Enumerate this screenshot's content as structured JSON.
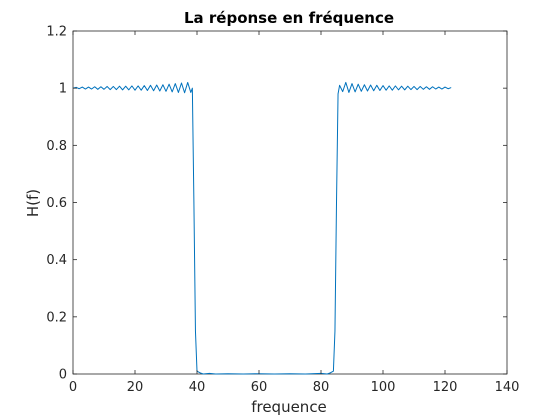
{
  "chart_data": {
    "type": "line",
    "title": "La réponse en fréquence",
    "xlabel": "frequence",
    "ylabel": "H(f)",
    "xlim": [
      0,
      140
    ],
    "ylim": [
      0,
      1.2
    ],
    "xticks": [
      0,
      20,
      40,
      60,
      80,
      100,
      120,
      140
    ],
    "xtick_labels": [
      "0",
      "20",
      "40",
      "60",
      "80",
      "100",
      "120",
      "140"
    ],
    "yticks": [
      0,
      0.2,
      0.4,
      0.6,
      0.8,
      1,
      1.2
    ],
    "ytick_labels": [
      "0",
      "0.2",
      "0.4",
      "0.6",
      "0.8",
      "1",
      "1.2"
    ],
    "grid": false,
    "series": [
      {
        "color": "#0072bd",
        "x": [
          0,
          1,
          2,
          3,
          4,
          5,
          6,
          7,
          8,
          9,
          10,
          11,
          12,
          13,
          14,
          15,
          16,
          17,
          18,
          19,
          20,
          21,
          22,
          23,
          24,
          25,
          26,
          27,
          28,
          29,
          30,
          31,
          32,
          33,
          34,
          35,
          36,
          37,
          38,
          38.5,
          39,
          39.5,
          40,
          41,
          42,
          44,
          46,
          50,
          55,
          60,
          65,
          70,
          75,
          80,
          82,
          83,
          84,
          84.5,
          85,
          85.5,
          86,
          87,
          88,
          89,
          90,
          91,
          92,
          93,
          94,
          95,
          96,
          97,
          98,
          99,
          100,
          101,
          102,
          103,
          104,
          105,
          106,
          107,
          108,
          109,
          110,
          111,
          112,
          113,
          114,
          115,
          116,
          117,
          118,
          119,
          120,
          121,
          122
        ],
        "y": [
          1.0,
          1.003,
          0.998,
          1.004,
          0.997,
          1.004,
          0.997,
          1.005,
          0.996,
          1.005,
          0.996,
          1.006,
          0.995,
          1.006,
          0.995,
          1.007,
          0.994,
          1.007,
          0.994,
          1.008,
          0.993,
          1.008,
          0.993,
          1.009,
          0.992,
          1.01,
          0.991,
          1.011,
          0.99,
          1.012,
          0.989,
          1.014,
          0.987,
          1.016,
          0.985,
          1.018,
          0.984,
          1.02,
          0.985,
          1.0,
          0.6,
          0.15,
          0.01,
          0.004,
          0.0,
          0.002,
          0.0,
          0.001,
          0.0,
          0.001,
          0.0,
          0.001,
          0.0,
          0.002,
          0.0,
          0.004,
          0.01,
          0.15,
          0.6,
          0.98,
          1.01,
          0.988,
          1.02,
          0.985,
          1.016,
          0.987,
          1.014,
          0.989,
          1.012,
          0.99,
          1.011,
          0.991,
          1.01,
          0.992,
          1.009,
          0.993,
          1.008,
          0.993,
          1.008,
          0.994,
          1.007,
          0.994,
          1.007,
          0.995,
          1.006,
          0.995,
          1.006,
          0.996,
          1.005,
          0.996,
          1.005,
          0.997,
          1.004,
          0.997,
          1.004,
          0.998,
          1.002
        ]
      }
    ]
  }
}
